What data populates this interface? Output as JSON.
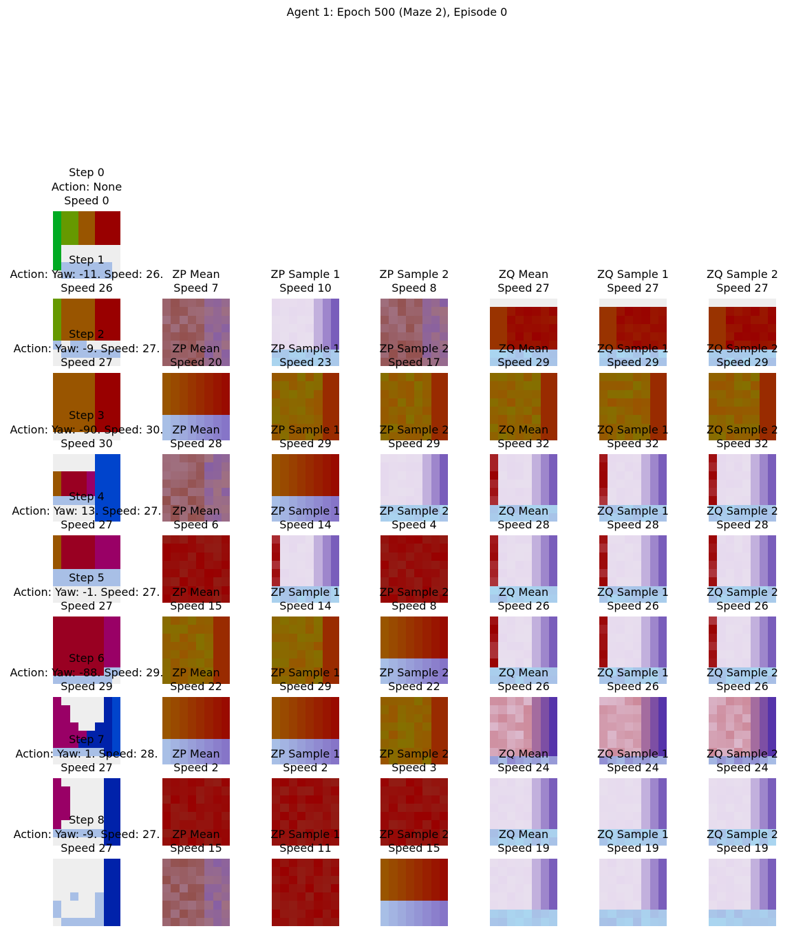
{
  "title": "Agent 1: Epoch 500 (Maze 2), Episode 0",
  "column_titles": [
    "ZP Mean",
    "ZP Sample 1",
    "ZP Sample 2",
    "ZQ Mean",
    "ZQ Sample 1",
    "ZQ Sample 2"
  ],
  "steps": [
    {
      "step": "Step 0",
      "action": "Action: None",
      "speed": "Speed 0",
      "preds": []
    },
    {
      "step": "Step 1",
      "action": "Action: Yaw: -11. Speed: 26.",
      "speed": "Speed 26",
      "preds": [
        "Speed 7",
        "Speed 10",
        "Speed 8",
        "Speed 27",
        "Speed 27",
        "Speed 27"
      ]
    },
    {
      "step": "Step 2",
      "action": "Action: Yaw: -9. Speed: 27.",
      "speed": "Speed 27",
      "preds": [
        "Speed 20",
        "Speed 23",
        "Speed 17",
        "Speed 29",
        "Speed 29",
        "Speed 29"
      ]
    },
    {
      "step": "Step 3",
      "action": "Action: Yaw: -90. Speed: 30.",
      "speed": "Speed 30",
      "preds": [
        "Speed 28",
        "Speed 29",
        "Speed 29",
        "Speed 32",
        "Speed 32",
        "Speed 32"
      ]
    },
    {
      "step": "Step 4",
      "action": "Action: Yaw: 13. Speed: 27.",
      "speed": "Speed 27",
      "preds": [
        "Speed 6",
        "Speed 14",
        "Speed 4",
        "Speed 28",
        "Speed 28",
        "Speed 28"
      ]
    },
    {
      "step": "Step 5",
      "action": "Action: Yaw: -1. Speed: 27.",
      "speed": "Speed 27",
      "preds": [
        "Speed 15",
        "Speed 14",
        "Speed 8",
        "Speed 26",
        "Speed 26",
        "Speed 26"
      ]
    },
    {
      "step": "Step 6",
      "action": "Action: Yaw: -88. Speed: 29.",
      "speed": "Speed 29",
      "preds": [
        "Speed 22",
        "Speed 29",
        "Speed 22",
        "Speed 26",
        "Speed 26",
        "Speed 26"
      ]
    },
    {
      "step": "Step 7",
      "action": "Action: Yaw: 1. Speed: 28.",
      "speed": "Speed 27",
      "preds": [
        "Speed 2",
        "Speed 2",
        "Speed 3",
        "Speed 24",
        "Speed 24",
        "Speed 24"
      ]
    },
    {
      "step": "Step 8",
      "action": "Action: Yaw: -9. Speed: 27.",
      "speed": "Speed 27",
      "preds": [
        "Speed 15",
        "Speed 11",
        "Speed 15",
        "Speed 19",
        "Speed 19",
        "Speed 19"
      ]
    }
  ],
  "colors": {
    "green": "#00aa22",
    "olive": "#669900",
    "orange": "#995500",
    "red": "#990000",
    "crimson": "#990022",
    "magenta": "#990066",
    "blue": "#0044cc",
    "navy": "#0022aa",
    "white": "#eeeeee",
    "light_blue": "#a8bfe6",
    "light_cyan": "#aad6f0",
    "lavender": "#e6d9ee",
    "violet": "#7755bb",
    "purple": "#5533aa",
    "rose": "#cc8899",
    "mauve": "#a07080",
    "brown_red": "#8a3a2a"
  }
}
